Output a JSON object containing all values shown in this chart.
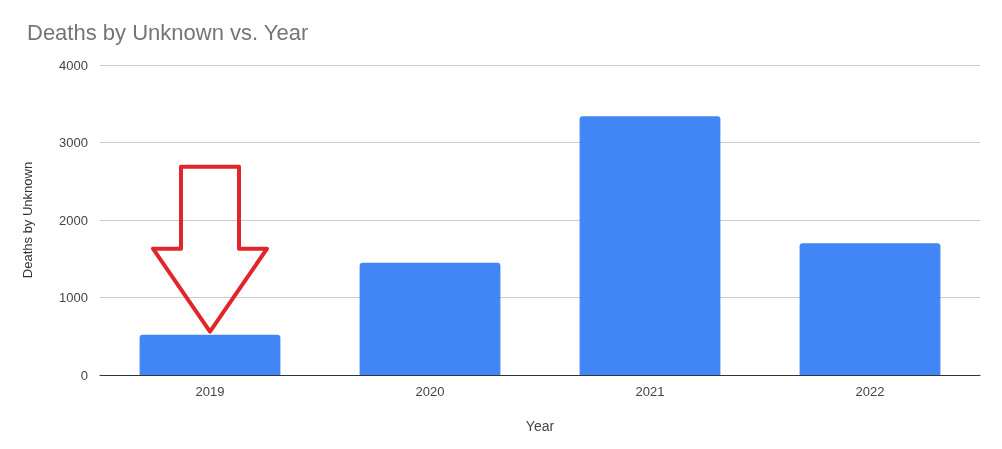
{
  "chart_data": {
    "type": "bar",
    "title": "Deaths by Unknown vs. Year",
    "xlabel": "Year",
    "ylabel": "Deaths by Unknown",
    "categories": [
      "2019",
      "2020",
      "2021",
      "2022"
    ],
    "values": [
      520,
      1450,
      3340,
      1700
    ],
    "color": "#4285f4",
    "ylim": [
      0,
      4000
    ],
    "yticks": [
      0,
      1000,
      2000,
      3000,
      4000
    ],
    "grid": "y"
  }
}
